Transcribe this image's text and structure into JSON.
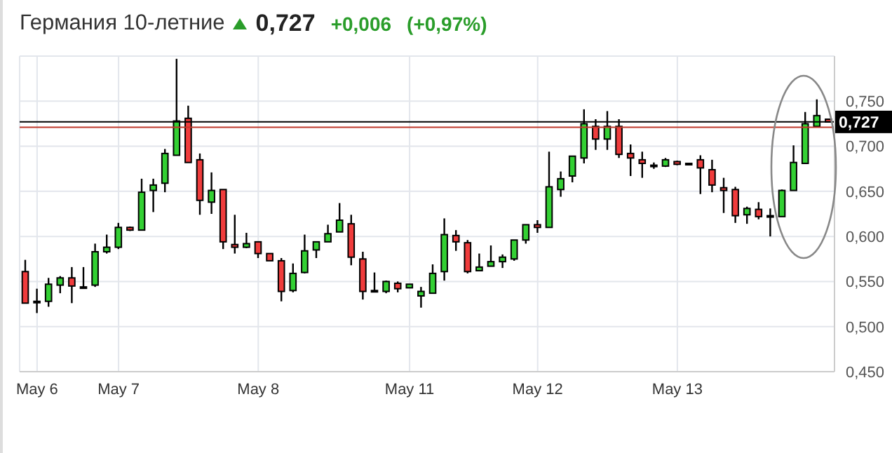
{
  "chart_data": {
    "type": "candlestick",
    "title": "Германия 10-летние",
    "annotations": [
      "0,727",
      "+0,006",
      "(+0,97%)"
    ],
    "categories": [
      null,
      "May 6",
      null,
      null,
      null,
      null,
      null,
      null,
      "May 7",
      null,
      null,
      null,
      null,
      null,
      null,
      null,
      null,
      null,
      null,
      null,
      "May 8",
      null,
      null,
      null,
      null,
      null,
      null,
      null,
      null,
      null,
      null,
      null,
      null,
      "May 11",
      null,
      null,
      null,
      null,
      null,
      null,
      null,
      null,
      null,
      null,
      "May 12",
      null,
      null,
      null,
      null,
      null,
      null,
      null,
      null,
      null,
      null,
      null,
      "May 13",
      null,
      null,
      null,
      null,
      null,
      null,
      null,
      null,
      null,
      null,
      null,
      null,
      null
    ],
    "ohlc": [
      [
        0.561,
        0.574,
        0.526,
        0.526
      ],
      [
        0.528,
        0.542,
        0.515,
        0.528
      ],
      [
        0.528,
        0.554,
        0.522,
        0.547
      ],
      [
        0.546,
        0.556,
        0.537,
        0.554
      ],
      [
        0.554,
        0.566,
        0.526,
        0.545
      ],
      [
        0.544,
        0.566,
        0.542,
        0.543
      ],
      [
        0.546,
        0.592,
        0.544,
        0.583
      ],
      [
        0.583,
        0.602,
        0.581,
        0.588
      ],
      [
        0.588,
        0.615,
        0.586,
        0.61
      ],
      [
        0.61,
        0.611,
        0.606,
        0.607
      ],
      [
        0.607,
        0.664,
        0.607,
        0.649
      ],
      [
        0.651,
        0.664,
        0.627,
        0.657
      ],
      [
        0.659,
        0.697,
        0.649,
        0.692
      ],
      [
        0.69,
        0.797,
        0.69,
        0.728
      ],
      [
        0.731,
        0.745,
        0.682,
        0.682
      ],
      [
        0.685,
        0.692,
        0.624,
        0.64
      ],
      [
        0.638,
        0.671,
        0.625,
        0.651
      ],
      [
        0.652,
        0.652,
        0.586,
        0.594
      ],
      [
        0.591,
        0.624,
        0.581,
        0.588
      ],
      [
        0.588,
        0.604,
        0.587,
        0.592
      ],
      [
        0.594,
        0.594,
        0.576,
        0.581
      ],
      [
        0.581,
        0.581,
        0.573,
        0.573
      ],
      [
        0.573,
        0.576,
        0.528,
        0.539
      ],
      [
        0.54,
        0.57,
        0.538,
        0.559
      ],
      [
        0.56,
        0.602,
        0.559,
        0.584
      ],
      [
        0.585,
        0.594,
        0.576,
        0.594
      ],
      [
        0.594,
        0.613,
        0.594,
        0.603
      ],
      [
        0.605,
        0.637,
        0.605,
        0.618
      ],
      [
        0.614,
        0.624,
        0.568,
        0.577
      ],
      [
        0.575,
        0.583,
        0.53,
        0.539
      ],
      [
        0.54,
        0.56,
        0.538,
        0.54
      ],
      [
        0.539,
        0.551,
        0.537,
        0.55
      ],
      [
        0.548,
        0.55,
        0.538,
        0.542
      ],
      [
        0.543,
        0.547,
        0.543,
        0.547
      ],
      [
        0.534,
        0.544,
        0.521,
        0.539
      ],
      [
        0.537,
        0.569,
        0.537,
        0.559
      ],
      [
        0.561,
        0.62,
        0.551,
        0.602
      ],
      [
        0.601,
        0.607,
        0.584,
        0.594
      ],
      [
        0.593,
        0.596,
        0.559,
        0.561
      ],
      [
        0.562,
        0.581,
        0.562,
        0.566
      ],
      [
        0.567,
        0.59,
        0.567,
        0.572
      ],
      [
        0.572,
        0.58,
        0.565,
        0.577
      ],
      [
        0.575,
        0.596,
        0.573,
        0.596
      ],
      [
        0.596,
        0.613,
        0.592,
        0.613
      ],
      [
        0.613,
        0.618,
        0.604,
        0.61
      ],
      [
        0.61,
        0.694,
        0.61,
        0.655
      ],
      [
        0.652,
        0.672,
        0.644,
        0.664
      ],
      [
        0.667,
        0.689,
        0.66,
        0.689
      ],
      [
        0.687,
        0.741,
        0.681,
        0.725
      ],
      [
        0.722,
        0.73,
        0.696,
        0.708
      ],
      [
        0.708,
        0.739,
        0.696,
        0.722
      ],
      [
        0.722,
        0.73,
        0.687,
        0.691
      ],
      [
        0.692,
        0.702,
        0.667,
        0.687
      ],
      [
        0.685,
        0.694,
        0.665,
        0.681
      ],
      [
        0.679,
        0.682,
        0.675,
        0.678
      ],
      [
        0.678,
        0.687,
        0.677,
        0.685
      ],
      [
        0.683,
        0.684,
        0.679,
        0.68
      ],
      [
        0.681,
        0.681,
        0.681,
        0.681
      ],
      [
        0.685,
        0.69,
        0.647,
        0.676
      ],
      [
        0.674,
        0.685,
        0.649,
        0.657
      ],
      [
        0.654,
        0.665,
        0.626,
        0.651
      ],
      [
        0.652,
        0.655,
        0.615,
        0.623
      ],
      [
        0.624,
        0.633,
        0.614,
        0.631
      ],
      [
        0.63,
        0.638,
        0.619,
        0.622
      ],
      [
        0.623,
        0.631,
        0.6,
        0.623
      ],
      [
        0.622,
        0.652,
        0.622,
        0.651
      ],
      [
        0.651,
        0.701,
        0.651,
        0.682
      ],
      [
        0.681,
        0.738,
        0.681,
        0.725
      ],
      [
        0.722,
        0.752,
        0.722,
        0.734
      ],
      [
        0.73,
        0.73,
        0.727,
        0.727
      ]
    ],
    "colors": [
      "#f03c3c",
      "#f03c3c",
      "#33d033",
      "#33d033",
      "#f03c3c",
      "#f03c3c",
      "#33d033",
      "#33d033",
      "#33d033",
      "#f03c3c",
      "#33d033",
      "#33d033",
      "#33d033",
      "#33d033",
      "#f03c3c",
      "#f03c3c",
      "#33d033",
      "#f03c3c",
      "#f03c3c",
      "#33d033",
      "#f03c3c",
      "#f03c3c",
      "#f03c3c",
      "#33d033",
      "#33d033",
      "#33d033",
      "#33d033",
      "#33d033",
      "#f03c3c",
      "#f03c3c",
      "#33d033",
      "#33d033",
      "#f03c3c",
      "#33d033",
      "#33d033",
      "#33d033",
      "#33d033",
      "#f03c3c",
      "#f03c3c",
      "#33d033",
      "#33d033",
      "#33d033",
      "#33d033",
      "#33d033",
      "#f03c3c",
      "#33d033",
      "#33d033",
      "#33d033",
      "#33d033",
      "#f03c3c",
      "#33d033",
      "#f03c3c",
      "#f03c3c",
      "#f03c3c",
      "#f03c3c",
      "#33d033",
      "#f03c3c",
      "#f03c3c",
      "#f03c3c",
      "#f03c3c",
      "#f03c3c",
      "#f03c3c",
      "#33d033",
      "#f03c3c",
      "#f03c3c",
      "#33d033",
      "#33d033",
      "#33d033",
      "#33d033",
      "#f03c3c"
    ],
    "ylim": [
      0.45,
      0.8
    ],
    "yticks": [
      {
        "value": 0.45,
        "label": "0,450"
      },
      {
        "value": 0.5,
        "label": "0,500"
      },
      {
        "value": 0.55,
        "label": "0,550"
      },
      {
        "value": 0.6,
        "label": "0,600"
      },
      {
        "value": 0.65,
        "label": "0,650"
      },
      {
        "value": 0.7,
        "label": "0,700"
      },
      {
        "value": 0.75,
        "label": "0,750"
      },
      {
        "value": 0.8,
        "label": null
      }
    ],
    "ref_lines": [
      {
        "axis": "y",
        "value": 0.727,
        "label": "0,727",
        "color": "#000000"
      },
      {
        "axis": "y",
        "value": 0.721,
        "label": null,
        "color": "#c0392b"
      }
    ],
    "grid": true
  }
}
